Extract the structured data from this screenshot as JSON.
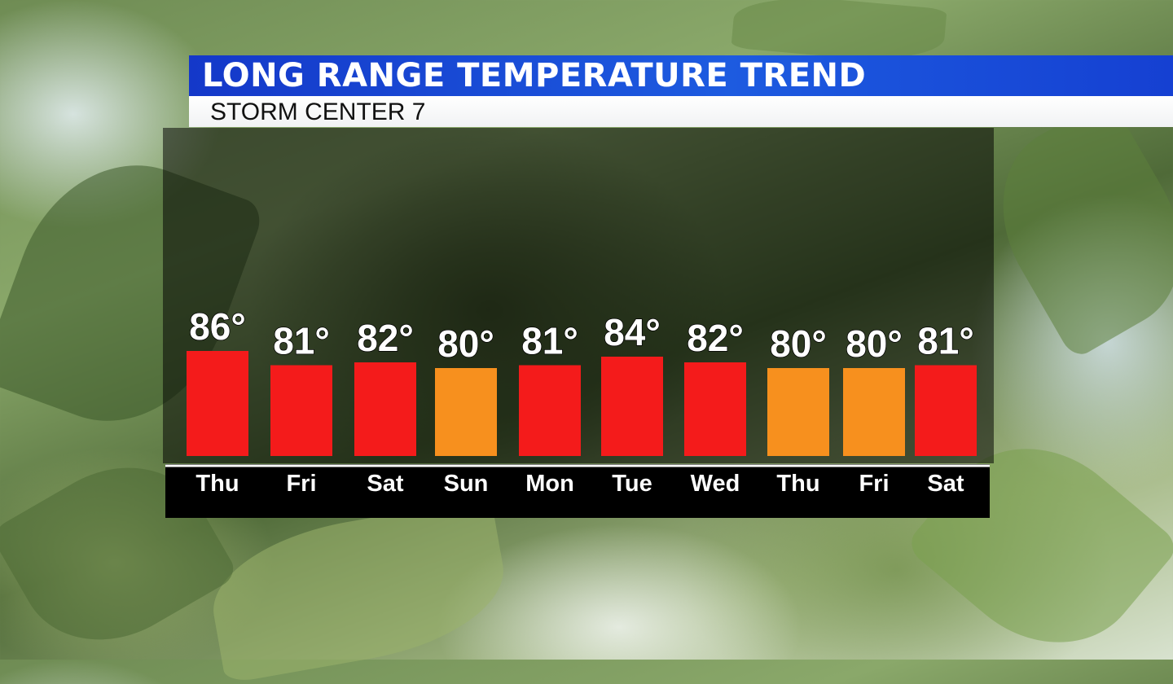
{
  "header": {
    "title": "LONG RANGE TEMPERATURE TREND",
    "subtitle": "STORM CENTER 7"
  },
  "colors": {
    "title_bar": "#1d4fd9",
    "hot": "#f41b1b",
    "warm": "#f7901e",
    "axis_line": "#ffffff",
    "label_text": "#ffffff"
  },
  "chart_data": {
    "type": "bar",
    "title": "LONG RANGE TEMPERATURE TREND",
    "subtitle": "STORM CENTER 7",
    "xlabel": "",
    "ylabel": "",
    "unit": "°",
    "categories": [
      "Thu",
      "Fri",
      "Sat",
      "Sun",
      "Mon",
      "Tue",
      "Wed",
      "Thu",
      "Fri",
      "Sat"
    ],
    "values": [
      86,
      81,
      82,
      80,
      81,
      84,
      82,
      80,
      80,
      81
    ],
    "value_labels": [
      "86°",
      "81°",
      "82°",
      "80°",
      "81°",
      "84°",
      "82°",
      "80°",
      "80°",
      "81°"
    ],
    "bar_colors": [
      "#f41b1b",
      "#f41b1b",
      "#f41b1b",
      "#f7901e",
      "#f41b1b",
      "#f41b1b",
      "#f41b1b",
      "#f7901e",
      "#f7901e",
      "#f41b1b"
    ],
    "grid": false,
    "legend": "none"
  }
}
